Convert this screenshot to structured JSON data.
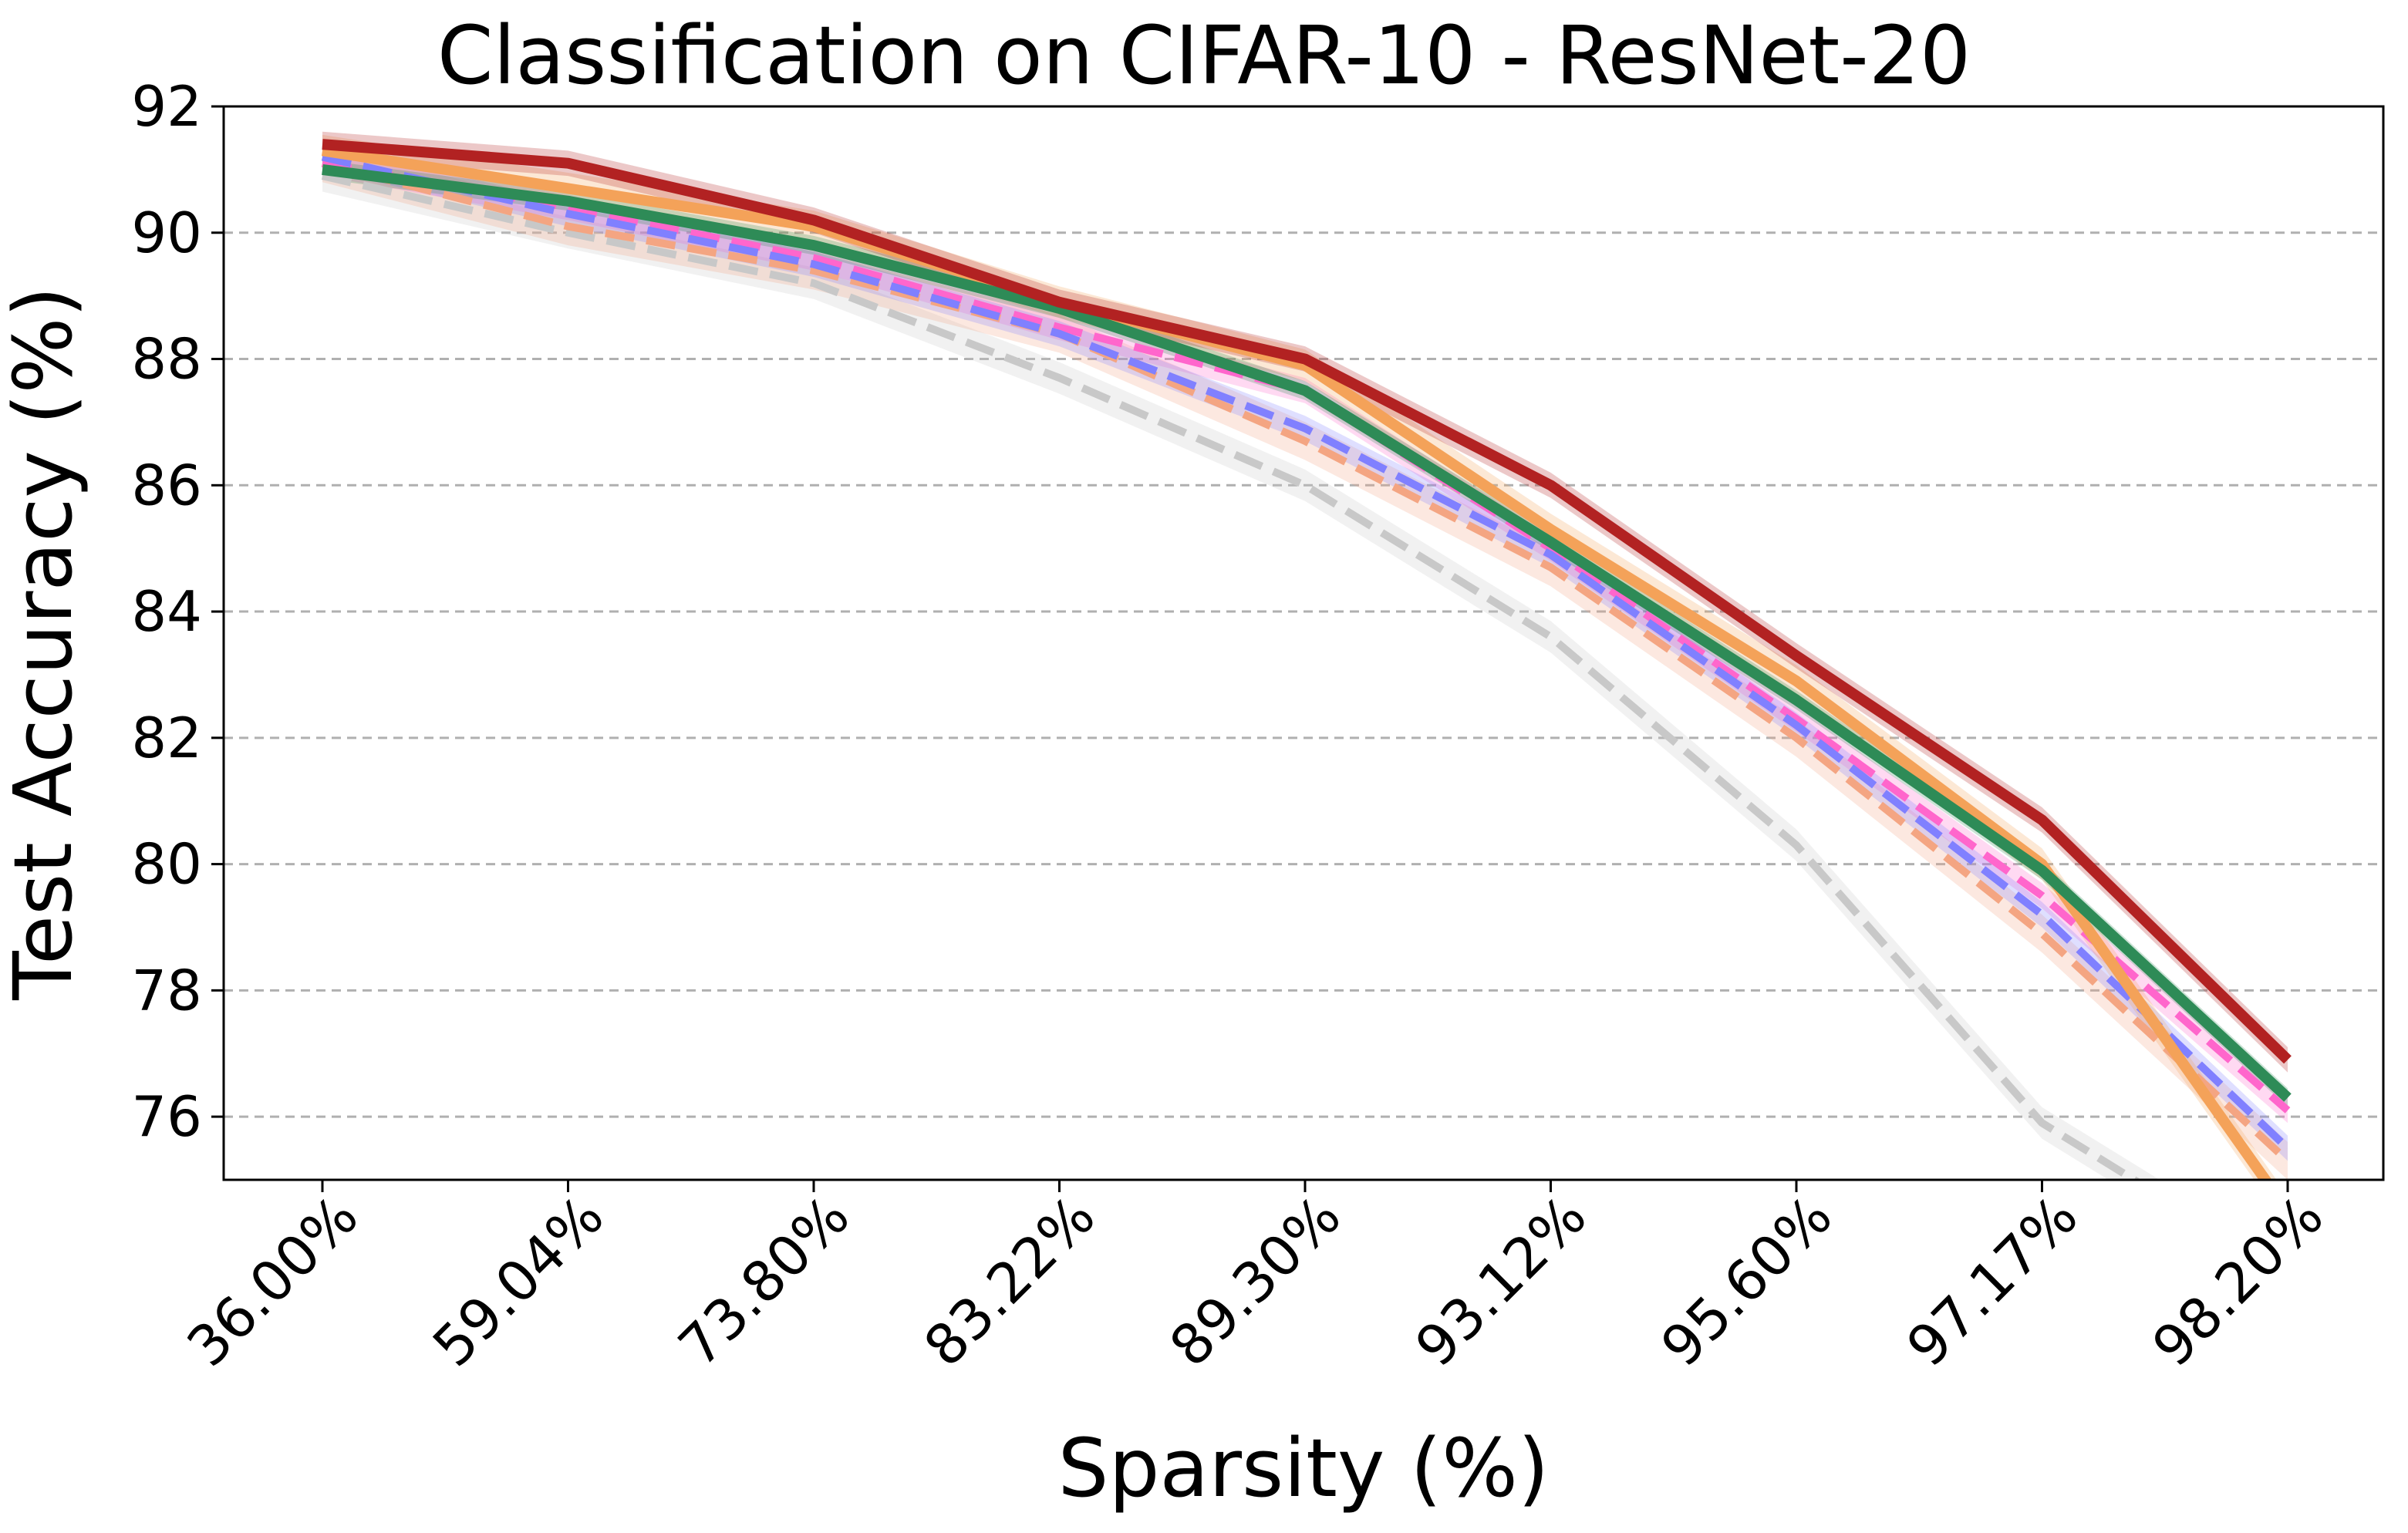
{
  "chart_data": {
    "type": "line",
    "title": "Classification on CIFAR-10 - ResNet-20",
    "xlabel": "Sparsity (%)",
    "ylabel": "Test Accuracy (%)",
    "categories": [
      "36.00%",
      "59.04%",
      "73.80%",
      "83.22%",
      "89.30%",
      "93.12%",
      "95.60%",
      "97.17%",
      "98.20%"
    ],
    "ylim": [
      75,
      92
    ],
    "yticks": [
      76,
      78,
      80,
      82,
      84,
      86,
      88,
      90,
      92
    ],
    "grid": "horizontal dashed",
    "series": [
      {
        "color": "#c8c8c8",
        "dashed": true,
        "band": 0.25,
        "values": [
          90.9,
          90.0,
          89.2,
          87.7,
          86.0,
          83.6,
          80.3,
          75.9,
          73.5
        ]
      },
      {
        "color": "#f4a582",
        "dashed": true,
        "band": 0.3,
        "values": [
          91.1,
          90.1,
          89.4,
          88.4,
          86.7,
          84.7,
          82.0,
          78.9,
          75.3
        ]
      },
      {
        "color": "#ff66cc",
        "dashed": true,
        "band": 0.2,
        "values": [
          91.1,
          90.4,
          89.6,
          88.5,
          87.5,
          85.0,
          82.3,
          79.5,
          76.1
        ]
      },
      {
        "color": "#8080ff",
        "dashed": true,
        "band": 0.2,
        "values": [
          91.2,
          90.3,
          89.5,
          88.4,
          86.9,
          84.9,
          82.2,
          79.2,
          75.5
        ]
      },
      {
        "color": "#f4a259",
        "dashed": false,
        "band": 0.25,
        "values": [
          91.3,
          90.7,
          90.1,
          88.9,
          87.9,
          85.3,
          82.9,
          80.0,
          74.5
        ]
      },
      {
        "color": "#2e8b57",
        "dashed": false,
        "band": 0.15,
        "values": [
          91.0,
          90.5,
          89.8,
          88.8,
          87.5,
          85.1,
          82.6,
          79.9,
          76.3
        ]
      },
      {
        "color": "#b22222",
        "dashed": false,
        "band": 0.2,
        "values": [
          91.4,
          91.1,
          90.2,
          88.9,
          88.0,
          86.0,
          83.3,
          80.7,
          76.9
        ]
      }
    ]
  }
}
